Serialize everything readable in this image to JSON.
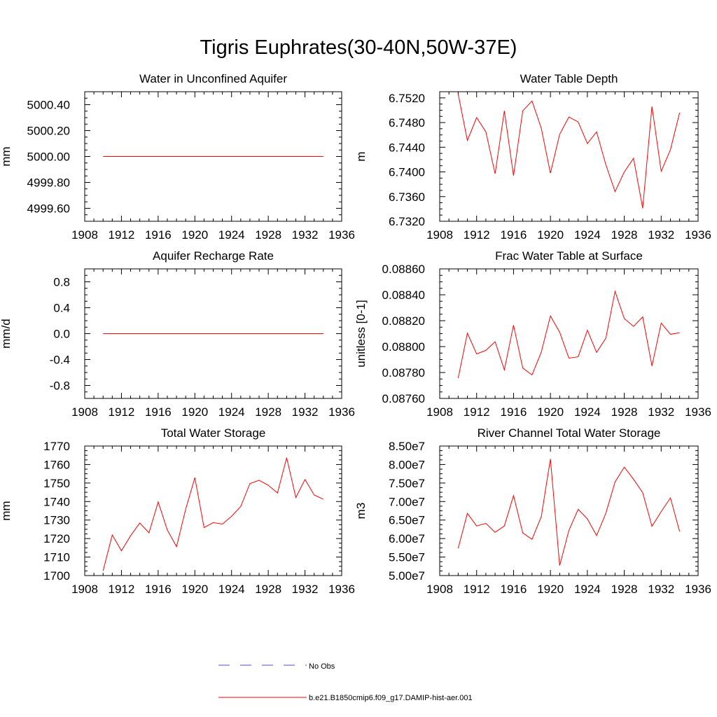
{
  "figure": {
    "title": "Tigris Euphrates(30-40N,50W-37E)"
  },
  "legend": {
    "items": [
      {
        "label": "No Obs",
        "color": "#0000ff",
        "dash": true
      },
      {
        "label": "b.e21.B1850cmip6.f09_g17.DAMIP-hist-aer.001",
        "color": "#ff0000",
        "dash": false
      }
    ]
  },
  "chart_data": [
    {
      "type": "line",
      "title": "Water in Unconfined Aquifer",
      "ylabel": "mm",
      "xlim": [
        1908,
        1936
      ],
      "ylim": [
        4999.5,
        5000.5
      ],
      "x_ticks": [
        1908,
        1912,
        1916,
        1920,
        1924,
        1928,
        1932,
        1936
      ],
      "y_ticks": [
        4999.6,
        4999.8,
        5000.0,
        5000.2,
        5000.4
      ],
      "y_tick_labels": [
        "4999.60",
        "4999.80",
        "5000.00",
        "5000.20",
        "5000.40"
      ],
      "series": [
        {
          "color": "#ff0000",
          "x": [
            1910,
            1934
          ],
          "values": [
            5000.0,
            5000.0
          ]
        }
      ]
    },
    {
      "type": "line",
      "title": "Water Table Depth",
      "ylabel": "m",
      "xlim": [
        1908,
        1936
      ],
      "ylim": [
        6.732,
        6.753
      ],
      "x_ticks": [
        1908,
        1912,
        1916,
        1920,
        1924,
        1928,
        1932,
        1936
      ],
      "y_ticks": [
        6.732,
        6.736,
        6.74,
        6.744,
        6.748,
        6.752
      ],
      "y_tick_labels": [
        "6.7320",
        "6.7360",
        "6.7400",
        "6.7440",
        "6.7480",
        "6.7520"
      ],
      "series": [
        {
          "color": "#ff0000",
          "x": [
            1910,
            1911,
            1912,
            1913,
            1914,
            1915,
            1916,
            1917,
            1918,
            1919,
            1920,
            1921,
            1922,
            1923,
            1924,
            1925,
            1926,
            1927,
            1928,
            1929,
            1930,
            1931,
            1932,
            1933,
            1934
          ],
          "values": [
            6.7526,
            6.7451,
            6.7488,
            6.7465,
            6.7397,
            6.7499,
            6.7394,
            6.7499,
            6.7515,
            6.7471,
            6.7398,
            6.7461,
            6.7489,
            6.7481,
            6.7446,
            6.7465,
            6.7412,
            6.7368,
            6.74,
            6.7422,
            6.7341,
            6.7506,
            6.7401,
            6.7436,
            6.7496
          ]
        }
      ]
    },
    {
      "type": "line",
      "title": "Aquifer Recharge Rate",
      "ylabel": "mm/d",
      "xlim": [
        1908,
        1936
      ],
      "ylim": [
        -1.0,
        1.0
      ],
      "x_ticks": [
        1908,
        1912,
        1916,
        1920,
        1924,
        1928,
        1932,
        1936
      ],
      "y_ticks": [
        -0.8,
        -0.4,
        0.0,
        0.4,
        0.8
      ],
      "y_tick_labels": [
        "-0.8",
        "-0.4",
        "0.0",
        "0.4",
        "0.8"
      ],
      "series": [
        {
          "color": "#ff0000",
          "x": [
            1910,
            1934
          ],
          "values": [
            0.0,
            0.0
          ]
        }
      ]
    },
    {
      "type": "line",
      "title": "Frac Water Table at Surface",
      "ylabel": "unitless [0-1]",
      "xlim": [
        1908,
        1936
      ],
      "ylim": [
        0.0876,
        0.0886
      ],
      "x_ticks": [
        1908,
        1912,
        1916,
        1920,
        1924,
        1928,
        1932,
        1936
      ],
      "y_ticks": [
        0.0876,
        0.0878,
        0.088,
        0.0882,
        0.0884,
        0.0886
      ],
      "y_tick_labels": [
        "0.08760",
        "0.08780",
        "0.08800",
        "0.08820",
        "0.08840",
        "0.08860"
      ],
      "series": [
        {
          "color": "#ff0000",
          "x": [
            1910,
            1911,
            1912,
            1913,
            1914,
            1915,
            1916,
            1917,
            1918,
            1919,
            1920,
            1921,
            1922,
            1923,
            1924,
            1925,
            1926,
            1927,
            1928,
            1929,
            1930,
            1931,
            1932,
            1933,
            1934
          ],
          "values": [
            0.087758,
            0.088104,
            0.087943,
            0.087971,
            0.088038,
            0.08782,
            0.088166,
            0.087834,
            0.087781,
            0.087957,
            0.088237,
            0.088111,
            0.087911,
            0.087921,
            0.088126,
            0.087955,
            0.088064,
            0.088426,
            0.088216,
            0.088156,
            0.088229,
            0.087851,
            0.088181,
            0.088095,
            0.088107
          ]
        }
      ]
    },
    {
      "type": "line",
      "title": "Total Water Storage",
      "ylabel": "mm",
      "xlim": [
        1908,
        1936
      ],
      "ylim": [
        1700,
        1770
      ],
      "x_ticks": [
        1908,
        1912,
        1916,
        1920,
        1924,
        1928,
        1932,
        1936
      ],
      "y_ticks": [
        1700,
        1710,
        1720,
        1730,
        1740,
        1750,
        1760,
        1770
      ],
      "y_tick_labels": [
        "1700",
        "1710",
        "1720",
        "1730",
        "1740",
        "1750",
        "1760",
        "1770"
      ],
      "series": [
        {
          "color": "#ff0000",
          "x": [
            1910,
            1911,
            1912,
            1913,
            1914,
            1915,
            1916,
            1917,
            1918,
            1919,
            1920,
            1921,
            1922,
            1923,
            1924,
            1925,
            1926,
            1927,
            1928,
            1929,
            1930,
            1931,
            1932,
            1933,
            1934
          ],
          "values": [
            1702.5,
            1721.9,
            1713.4,
            1721.5,
            1728.4,
            1723.1,
            1739.8,
            1724.6,
            1715.6,
            1735.9,
            1752.9,
            1725.9,
            1728.6,
            1727.8,
            1732.0,
            1737.3,
            1749.7,
            1751.5,
            1748.8,
            1744.6,
            1763.7,
            1742.2,
            1751.9,
            1743.5,
            1741.3
          ]
        }
      ]
    },
    {
      "type": "line",
      "title": "River Channel Total Water Storage",
      "ylabel": "m3",
      "xlim": [
        1908,
        1936
      ],
      "ylim": [
        50000000,
        85000000
      ],
      "x_ticks": [
        1908,
        1912,
        1916,
        1920,
        1924,
        1928,
        1932,
        1936
      ],
      "y_ticks": [
        50000000,
        55000000,
        60000000,
        65000000,
        70000000,
        75000000,
        80000000,
        85000000
      ],
      "y_tick_labels": [
        "5.00e7",
        "5.50e7",
        "6.00e7",
        "6.50e7",
        "7.00e7",
        "7.50e7",
        "8.00e7",
        "8.50e7"
      ],
      "series": [
        {
          "color": "#ff0000",
          "x": [
            1910,
            1911,
            1912,
            1913,
            1914,
            1915,
            1916,
            1917,
            1918,
            1919,
            1920,
            1921,
            1922,
            1923,
            1924,
            1925,
            1926,
            1927,
            1928,
            1929,
            1930,
            1931,
            1932,
            1933,
            1934
          ],
          "values": [
            57400000,
            66800000,
            63400000,
            64100000,
            61700000,
            63400000,
            71600000,
            61500000,
            59800000,
            65900000,
            81500000,
            52700000,
            62200000,
            67900000,
            65300000,
            60800000,
            66800000,
            75300000,
            79300000,
            76000000,
            72400000,
            63300000,
            67300000,
            71000000,
            61900000
          ]
        }
      ]
    }
  ]
}
